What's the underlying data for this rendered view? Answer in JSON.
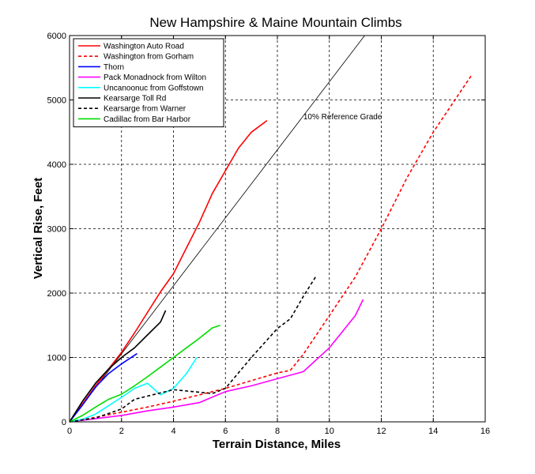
{
  "chart_data": {
    "type": "line",
    "title": "New Hampshire & Maine Mountain Climbs",
    "xlabel": "Terrain Distance, Miles",
    "ylabel": "Vertical Rise, Feet",
    "xlim": [
      0,
      16
    ],
    "ylim": [
      0,
      6000
    ],
    "xticks": [
      0,
      2,
      4,
      6,
      8,
      10,
      12,
      14,
      16
    ],
    "yticks": [
      0,
      1000,
      2000,
      3000,
      4000,
      5000,
      6000
    ],
    "grid": true,
    "legend_position": "top-left",
    "series": [
      {
        "name": "Washington Auto Road",
        "color": "#ff0000",
        "dash": "solid",
        "x": [
          0,
          0.5,
          1.0,
          1.5,
          2.0,
          2.5,
          3.0,
          3.5,
          4.0,
          4.5,
          5.0,
          5.5,
          6.0,
          6.5,
          7.0,
          7.6
        ],
        "y": [
          0,
          280,
          560,
          820,
          1080,
          1380,
          1700,
          2020,
          2300,
          2700,
          3100,
          3550,
          3900,
          4250,
          4500,
          4680
        ]
      },
      {
        "name": "Washington from Gorham",
        "color": "#ff0000",
        "dash": "dashed",
        "x": [
          0,
          1.0,
          2.0,
          3.0,
          4.0,
          5.0,
          6.0,
          7.0,
          8.0,
          8.5,
          9.0,
          10.0,
          11.0,
          12.0,
          13.0,
          14.0,
          15.0,
          15.5
        ],
        "y": [
          0,
          70,
          150,
          230,
          320,
          420,
          520,
          640,
          760,
          800,
          1050,
          1650,
          2250,
          3000,
          3800,
          4500,
          5100,
          5400
        ]
      },
      {
        "name": "Thorn",
        "color": "#0000ff",
        "dash": "solid",
        "x": [
          0,
          0.5,
          1.0,
          1.5,
          2.0,
          2.6
        ],
        "y": [
          0,
          260,
          540,
          750,
          900,
          1060
        ]
      },
      {
        "name": "Pack Monadnock from Wilton",
        "color": "#ff00ff",
        "dash": "solid",
        "x": [
          0,
          1.0,
          2.0,
          3.0,
          4.0,
          5.0,
          6.0,
          7.0,
          8.0,
          9.0,
          10.0,
          10.5,
          11.0,
          11.3
        ],
        "y": [
          0,
          50,
          100,
          170,
          230,
          300,
          470,
          560,
          670,
          780,
          1150,
          1400,
          1650,
          1900
        ]
      },
      {
        "name": "Uncanoonuc from Goffstown",
        "color": "#00ffff",
        "dash": "solid",
        "x": [
          0,
          0.5,
          1.0,
          1.5,
          2.0,
          2.5,
          3.0,
          3.5,
          4.0,
          4.5,
          4.9
        ],
        "y": [
          0,
          40,
          120,
          250,
          380,
          520,
          600,
          420,
          520,
          750,
          1000
        ]
      },
      {
        "name": "Kearsarge Toll Rd",
        "color": "#000000",
        "dash": "solid",
        "x": [
          0,
          0.5,
          1.0,
          1.5,
          2.0,
          2.5,
          3.0,
          3.5,
          3.7
        ],
        "y": [
          0,
          320,
          600,
          820,
          1000,
          1150,
          1350,
          1550,
          1730
        ]
      },
      {
        "name": "Kearsarge from Warner",
        "color": "#000000",
        "dash": "dashed",
        "x": [
          0,
          1.0,
          2.0,
          2.5,
          3.0,
          4.0,
          5.0,
          5.5,
          6.0,
          7.0,
          8.0,
          8.5,
          9.0,
          9.5
        ],
        "y": [
          0,
          60,
          200,
          350,
          400,
          500,
          460,
          440,
          520,
          1000,
          1450,
          1600,
          1950,
          2270
        ]
      },
      {
        "name": "Cadillac from Bar Harbor",
        "color": "#00dd00",
        "dash": "solid",
        "x": [
          0,
          0.5,
          1.0,
          1.5,
          2.0,
          2.5,
          3.0,
          3.5,
          4.0,
          4.5,
          5.0,
          5.5,
          5.8
        ],
        "y": [
          0,
          100,
          230,
          350,
          430,
          560,
          700,
          850,
          1000,
          1150,
          1300,
          1460,
          1500
        ]
      }
    ],
    "reference_line": {
      "x": [
        0,
        11.36
      ],
      "y": [
        0,
        6000
      ],
      "color": "#000000"
    },
    "annotations": [
      {
        "text": "10% Reference Grade",
        "x": 9.0,
        "y": 4700
      }
    ]
  }
}
